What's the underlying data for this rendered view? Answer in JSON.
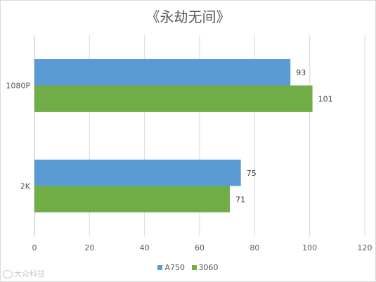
{
  "chart_data": {
    "type": "bar",
    "orientation": "horizontal",
    "title": "《永劫无间》",
    "categories": [
      "1080P",
      "2K"
    ],
    "series": [
      {
        "name": "A750",
        "color": "#5b9bd5",
        "values": [
          93,
          75
        ]
      },
      {
        "name": "3060",
        "color": "#70ad47",
        "values": [
          101,
          71
        ]
      }
    ],
    "xlim": [
      0,
      120
    ],
    "x_ticks": [
      0,
      20,
      40,
      60,
      80,
      100,
      120
    ],
    "grid": "vertical",
    "legend_position": "bottom",
    "data_labels": true
  },
  "watermark": {
    "text": "大众科技"
  }
}
